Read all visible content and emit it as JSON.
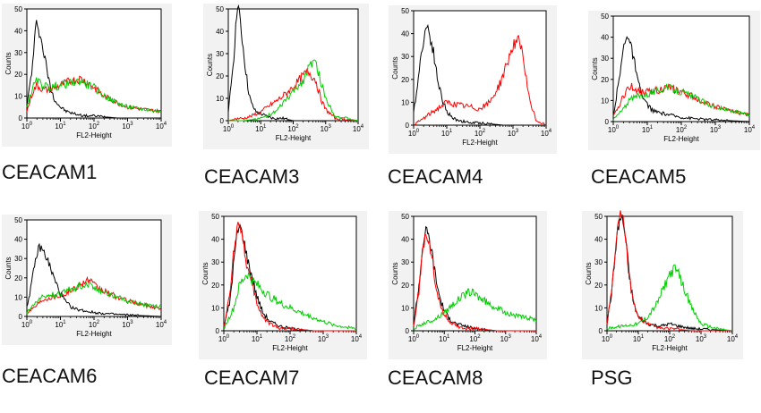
{
  "chart_data": [
    {
      "type": "line",
      "title": "CEACAM1",
      "xlabel": "FL2-Height",
      "ylabel": "Counts",
      "x_scale": "log",
      "xlim": [
        1,
        10000
      ],
      "ylim": [
        0,
        50
      ],
      "x_ticks": [
        {
          "base": "10",
          "exp": "0"
        },
        {
          "base": "10",
          "exp": "1"
        },
        {
          "base": "10",
          "exp": "2"
        },
        {
          "base": "10",
          "exp": "3"
        },
        {
          "base": "10",
          "exp": "4"
        }
      ],
      "y_ticks": [
        "0",
        "10",
        "20",
        "30",
        "40",
        "50"
      ],
      "series": [
        {
          "color": "#000000",
          "x": [
            1,
            1.5,
            1.8,
            2,
            2.3,
            3,
            4,
            5,
            7,
            10,
            15,
            25,
            50,
            100,
            500,
            10000
          ],
          "values": [
            5,
            25,
            40,
            45,
            40,
            32,
            22,
            14,
            8,
            5,
            3,
            2,
            1,
            1,
            0,
            0
          ]
        },
        {
          "color": "#ff0000",
          "x": [
            1,
            1.5,
            2,
            3,
            5,
            10,
            20,
            40,
            70,
            100,
            200,
            500,
            1000,
            3000,
            10000
          ],
          "values": [
            3,
            12,
            15,
            13,
            13,
            15,
            17,
            18,
            16,
            14,
            10,
            7,
            5,
            4,
            3
          ]
        },
        {
          "color": "#00cc00",
          "x": [
            1,
            1.5,
            2,
            3,
            5,
            10,
            20,
            40,
            70,
            100,
            200,
            500,
            1000,
            3000,
            10000
          ],
          "values": [
            5,
            14,
            17,
            15,
            14,
            15,
            16,
            17,
            15,
            14,
            10,
            7,
            5,
            4,
            3
          ]
        }
      ]
    },
    {
      "type": "line",
      "title": "CEACAM3",
      "xlabel": "FL2-Height",
      "ylabel": "Counts",
      "x_scale": "log",
      "xlim": [
        1,
        10000
      ],
      "ylim": [
        0,
        50
      ],
      "x_ticks": [
        {
          "base": "10",
          "exp": "0"
        },
        {
          "base": "10",
          "exp": "1"
        },
        {
          "base": "10",
          "exp": "2"
        },
        {
          "base": "10",
          "exp": "3"
        },
        {
          "base": "10",
          "exp": "4"
        }
      ],
      "y_ticks": [
        "0",
        "10",
        "20",
        "30",
        "40",
        "50"
      ],
      "series": [
        {
          "color": "#000000",
          "x": [
            1,
            1.5,
            1.8,
            2,
            2.3,
            3,
            4,
            5,
            7,
            10,
            15,
            25,
            50,
            100,
            500,
            10000
          ],
          "values": [
            3,
            30,
            48,
            52,
            45,
            30,
            15,
            8,
            4,
            3,
            2,
            1,
            1,
            0,
            0,
            0
          ]
        },
        {
          "color": "#ff0000",
          "x": [
            1,
            2,
            3,
            5,
            10,
            20,
            40,
            70,
            100,
            200,
            300,
            500,
            700,
            1000,
            2000,
            10000
          ],
          "values": [
            0,
            1,
            1,
            2,
            4,
            7,
            10,
            13,
            15,
            20,
            22,
            18,
            10,
            5,
            1,
            0
          ]
        },
        {
          "color": "#00cc00",
          "x": [
            1,
            3,
            10,
            30,
            50,
            100,
            200,
            300,
            400,
            500,
            700,
            1000,
            2000,
            10000
          ],
          "values": [
            0,
            0,
            1,
            4,
            8,
            13,
            18,
            23,
            27,
            25,
            18,
            10,
            2,
            0
          ]
        }
      ]
    },
    {
      "type": "line",
      "title": "CEACAM4",
      "xlabel": "FL2-Height",
      "ylabel": "Counts",
      "x_scale": "log",
      "xlim": [
        1,
        10000
      ],
      "ylim": [
        0,
        50
      ],
      "x_ticks": [
        {
          "base": "10",
          "exp": "0"
        },
        {
          "base": "10",
          "exp": "1"
        },
        {
          "base": "10",
          "exp": "2"
        },
        {
          "base": "10",
          "exp": "3"
        },
        {
          "base": "10",
          "exp": "4"
        }
      ],
      "y_ticks": [
        "0",
        "10",
        "20",
        "30",
        "40",
        "50"
      ],
      "series": [
        {
          "color": "#000000",
          "x": [
            1,
            1.5,
            2,
            2.5,
            3,
            4,
            5,
            7,
            10,
            15,
            25,
            50,
            100,
            500,
            10000
          ],
          "values": [
            5,
            25,
            38,
            44,
            40,
            32,
            22,
            12,
            6,
            3,
            2,
            1,
            1,
            0,
            0
          ]
        },
        {
          "color": "#ff0000",
          "x": [
            1,
            2,
            5,
            10,
            20,
            50,
            100,
            200,
            400,
            700,
            1000,
            1500,
            2000,
            3000,
            5000,
            10000
          ],
          "values": [
            0,
            3,
            7,
            10,
            9,
            8,
            7,
            10,
            18,
            28,
            35,
            37,
            30,
            12,
            2,
            0
          ]
        }
      ]
    },
    {
      "type": "line",
      "title": "CEACAM5",
      "xlabel": "FL2-Height",
      "ylabel": "Counts",
      "x_scale": "log",
      "xlim": [
        1,
        10000
      ],
      "ylim": [
        0,
        50
      ],
      "x_ticks": [
        {
          "base": "10",
          "exp": "0"
        },
        {
          "base": "10",
          "exp": "1"
        },
        {
          "base": "10",
          "exp": "2"
        },
        {
          "base": "10",
          "exp": "3"
        },
        {
          "base": "10",
          "exp": "4"
        }
      ],
      "y_ticks": [
        "0",
        "10",
        "20",
        "30",
        "40",
        "50"
      ],
      "series": [
        {
          "color": "#000000",
          "x": [
            1,
            1.5,
            2,
            2.5,
            3,
            4,
            5,
            7,
            10,
            15,
            25,
            50,
            100,
            500,
            10000
          ],
          "values": [
            3,
            20,
            35,
            42,
            38,
            30,
            20,
            12,
            8,
            5,
            4,
            3,
            2,
            1,
            0
          ]
        },
        {
          "color": "#ff0000",
          "x": [
            1,
            2,
            3,
            5,
            10,
            20,
            40,
            70,
            100,
            200,
            500,
            1000,
            3000,
            10000
          ],
          "values": [
            2,
            12,
            17,
            15,
            14,
            15,
            16,
            15,
            14,
            12,
            9,
            7,
            5,
            3
          ]
        },
        {
          "color": "#00cc00",
          "x": [
            1,
            2,
            3,
            5,
            10,
            20,
            40,
            70,
            100,
            200,
            500,
            1000,
            3000,
            10000
          ],
          "values": [
            1,
            6,
            10,
            12,
            13,
            15,
            16,
            15,
            14,
            12,
            9,
            7,
            5,
            3
          ]
        }
      ]
    },
    {
      "type": "line",
      "title": "CEACAM6",
      "xlabel": "FL2-Height",
      "ylabel": "Counts",
      "x_scale": "log",
      "xlim": [
        1,
        10000
      ],
      "ylim": [
        0,
        50
      ],
      "x_ticks": [
        {
          "base": "10",
          "exp": "0"
        },
        {
          "base": "10",
          "exp": "1"
        },
        {
          "base": "10",
          "exp": "2"
        },
        {
          "base": "10",
          "exp": "3"
        },
        {
          "base": "10",
          "exp": "4"
        }
      ],
      "y_ticks": [
        "0",
        "10",
        "20",
        "30",
        "40",
        "50"
      ],
      "series": [
        {
          "color": "#000000",
          "x": [
            1,
            1.5,
            2,
            2.5,
            3,
            4,
            5,
            7,
            10,
            15,
            25,
            50,
            100,
            500,
            10000
          ],
          "values": [
            5,
            20,
            33,
            36,
            34,
            30,
            25,
            18,
            12,
            7,
            4,
            3,
            2,
            1,
            0
          ]
        },
        {
          "color": "#ff0000",
          "x": [
            1,
            2,
            3,
            5,
            10,
            20,
            40,
            70,
            100,
            200,
            500,
            1000,
            3000,
            10000
          ],
          "values": [
            2,
            6,
            9,
            10,
            11,
            13,
            17,
            19,
            16,
            13,
            10,
            8,
            6,
            4
          ]
        },
        {
          "color": "#00cc00",
          "x": [
            1,
            2,
            3,
            5,
            10,
            20,
            40,
            70,
            100,
            200,
            500,
            1000,
            3000,
            10000
          ],
          "values": [
            2,
            8,
            10,
            11,
            12,
            14,
            16,
            17,
            15,
            13,
            10,
            8,
            6,
            5
          ]
        }
      ]
    },
    {
      "type": "line",
      "title": "CEACAM7",
      "xlabel": "FL2-Height",
      "ylabel": "Counts",
      "x_scale": "log",
      "xlim": [
        1,
        10000
      ],
      "ylim": [
        0,
        50
      ],
      "x_ticks": [
        {
          "base": "10",
          "exp": "0"
        },
        {
          "base": "10",
          "exp": "1"
        },
        {
          "base": "10",
          "exp": "2"
        },
        {
          "base": "10",
          "exp": "3"
        },
        {
          "base": "10",
          "exp": "4"
        }
      ],
      "y_ticks": [
        "0",
        "10",
        "20",
        "30",
        "40",
        "50"
      ],
      "series": [
        {
          "color": "#000000",
          "x": [
            1,
            1.5,
            2,
            2.5,
            3,
            4,
            5,
            7,
            10,
            15,
            25,
            50,
            100,
            500,
            10000
          ],
          "values": [
            2,
            12,
            30,
            42,
            46,
            40,
            32,
            24,
            15,
            8,
            4,
            2,
            1,
            0,
            0
          ]
        },
        {
          "color": "#ff0000",
          "x": [
            1,
            1.5,
            2,
            2.5,
            3,
            4,
            5,
            7,
            10,
            15,
            25,
            50,
            100,
            500,
            10000
          ],
          "values": [
            2,
            15,
            35,
            45,
            48,
            38,
            28,
            20,
            12,
            6,
            3,
            1,
            1,
            0,
            0
          ]
        },
        {
          "color": "#00cc00",
          "x": [
            1,
            2,
            3,
            5,
            7,
            10,
            20,
            50,
            100,
            300,
            1000,
            3000,
            10000
          ],
          "values": [
            1,
            10,
            20,
            25,
            22,
            20,
            16,
            12,
            10,
            7,
            4,
            2,
            1
          ]
        }
      ]
    },
    {
      "type": "line",
      "title": "CEACAM8",
      "xlabel": "FL2-Height",
      "ylabel": "Counts",
      "x_scale": "log",
      "xlim": [
        1,
        10000
      ],
      "ylim": [
        0,
        50
      ],
      "x_ticks": [
        {
          "base": "10",
          "exp": "0"
        },
        {
          "base": "10",
          "exp": "1"
        },
        {
          "base": "10",
          "exp": "2"
        },
        {
          "base": "10",
          "exp": "3"
        },
        {
          "base": "10",
          "exp": "4"
        }
      ],
      "y_ticks": [
        "0",
        "10",
        "20",
        "30",
        "40",
        "50"
      ],
      "series": [
        {
          "color": "#000000",
          "x": [
            1,
            1.5,
            2,
            2.5,
            3,
            4,
            5,
            7,
            10,
            15,
            25,
            50,
            100,
            500,
            10000
          ],
          "values": [
            3,
            20,
            38,
            44,
            42,
            34,
            25,
            15,
            9,
            5,
            3,
            2,
            1,
            0,
            0
          ]
        },
        {
          "color": "#ff0000",
          "x": [
            1,
            1.5,
            2,
            2.5,
            3,
            4,
            5,
            7,
            10,
            15,
            25,
            50,
            100,
            500,
            10000
          ],
          "values": [
            2,
            18,
            36,
            42,
            40,
            32,
            22,
            12,
            7,
            4,
            2,
            1,
            1,
            0,
            0
          ]
        },
        {
          "color": "#00cc00",
          "x": [
            1,
            2,
            5,
            10,
            20,
            40,
            70,
            100,
            200,
            500,
            1000,
            3000,
            10000
          ],
          "values": [
            1,
            3,
            5,
            8,
            12,
            15,
            17,
            16,
            13,
            10,
            8,
            6,
            5
          ]
        }
      ]
    },
    {
      "type": "line",
      "title": "PSG",
      "xlabel": "FL2-Height",
      "ylabel": "Counts",
      "x_scale": "log",
      "xlim": [
        1,
        10000
      ],
      "ylim": [
        0,
        50
      ],
      "x_ticks": [
        {
          "base": "10",
          "exp": "0"
        },
        {
          "base": "10",
          "exp": "1"
        },
        {
          "base": "10",
          "exp": "2"
        },
        {
          "base": "10",
          "exp": "3"
        },
        {
          "base": "10",
          "exp": "4"
        }
      ],
      "y_ticks": [
        "0",
        "10",
        "20",
        "30",
        "40",
        "50"
      ],
      "series": [
        {
          "color": "#000000",
          "x": [
            1,
            1.5,
            2,
            2.5,
            3,
            4,
            5,
            7,
            10,
            20,
            50,
            100,
            200,
            500,
            10000
          ],
          "values": [
            3,
            20,
            40,
            48,
            50,
            40,
            25,
            12,
            6,
            3,
            2,
            3,
            2,
            1,
            0
          ]
        },
        {
          "color": "#ff0000",
          "x": [
            1,
            1.5,
            2,
            2.5,
            3,
            4,
            5,
            7,
            10,
            20,
            50,
            100,
            500,
            10000
          ],
          "values": [
            3,
            22,
            42,
            50,
            52,
            40,
            25,
            12,
            6,
            3,
            1,
            1,
            0,
            0
          ]
        },
        {
          "color": "#00cc00",
          "x": [
            1,
            3,
            10,
            20,
            40,
            70,
            100,
            150,
            200,
            300,
            500,
            1000,
            3000,
            10000
          ],
          "values": [
            1,
            2,
            3,
            6,
            12,
            20,
            25,
            27,
            24,
            18,
            10,
            3,
            1,
            0
          ]
        }
      ]
    }
  ]
}
